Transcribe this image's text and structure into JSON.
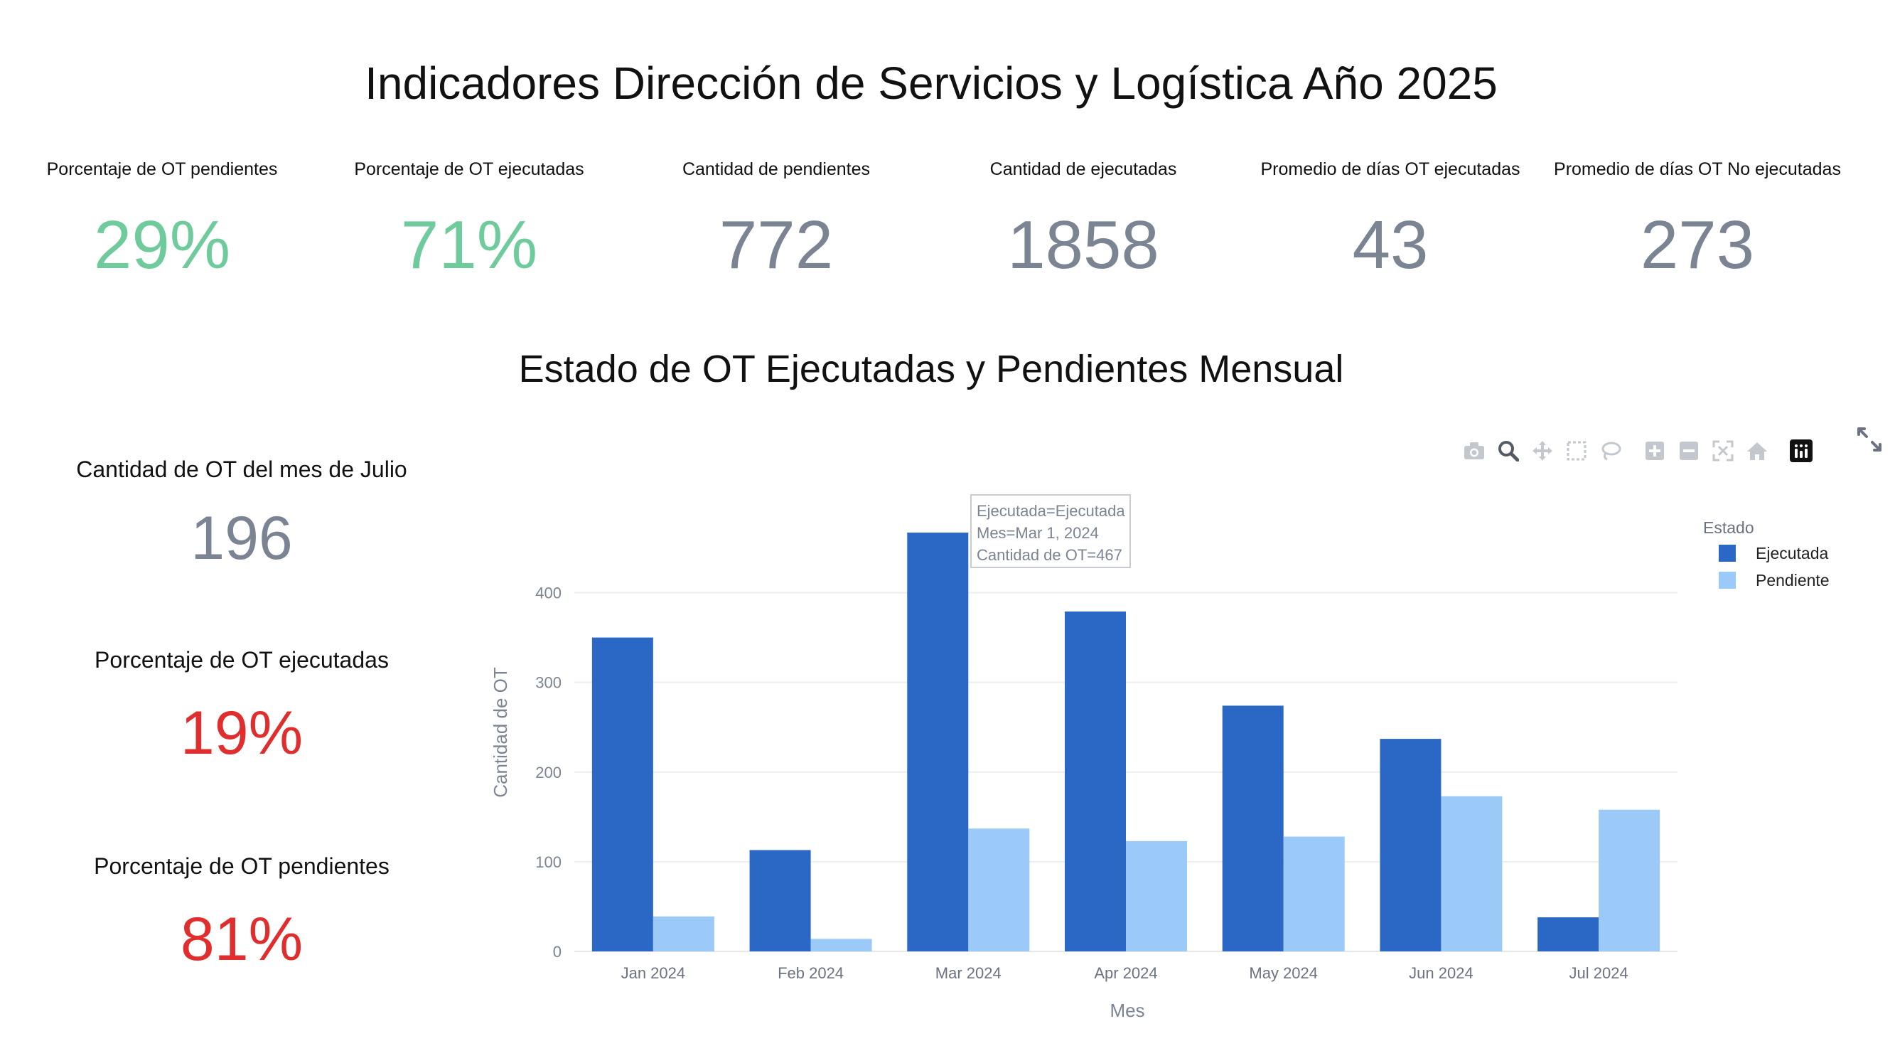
{
  "page": {
    "title": "Indicadores Dirección de Servicios y Logística Año 2025"
  },
  "kpis": [
    {
      "label": "Porcentaje de OT pendientes",
      "value": "29%"
    },
    {
      "label": "Porcentaje de OT ejecutadas",
      "value": "71%"
    },
    {
      "label": "Cantidad de pendientes",
      "value": "772"
    },
    {
      "label": "Cantidad de ejecutadas",
      "value": "1858"
    },
    {
      "label": "Promedio de días OT ejecutadas",
      "value": "43"
    },
    {
      "label": "Promedio de días OT No ejecutadas",
      "value": "273"
    }
  ],
  "colors": {
    "kpi_green": "#6fcb9b",
    "kpi_grey": "#7b8493",
    "kpi_red": "#e02e2e",
    "ejecutada": "#2b67c4",
    "pendiente": "#9bc9f8"
  },
  "side": {
    "month_label": "Cantidad de OT del mes de Julio",
    "month_value": "196",
    "exec_label": "Porcentaje de OT ejecutadas",
    "exec_value": "19%",
    "pend_label": "Porcentaje de OT pendientes",
    "pend_value": "81%"
  },
  "modebar": {
    "icons": [
      "camera-icon",
      "zoom-icon",
      "pan-icon",
      "box-select-icon",
      "lasso-icon",
      "zoom-in-icon",
      "zoom-out-icon",
      "autoscale-icon",
      "home-icon",
      "plotly-logo-icon"
    ],
    "expand_icon": "expand-icon"
  },
  "tooltip": {
    "line1": "Ejecutada=Ejecutada",
    "line2": "Mes=Mar 1, 2024",
    "line3": "Cantidad de OT=467"
  },
  "chart_data": {
    "type": "bar",
    "title": "Estado de OT Ejecutadas y Pendientes Mensual",
    "xlabel": "Mes",
    "ylabel": "Cantidad de OT",
    "categories": [
      "Jan 2024",
      "Feb 2024",
      "Mar 2024",
      "Apr 2024",
      "May 2024",
      "Jun 2024",
      "Jul 2024"
    ],
    "series": [
      {
        "name": "Ejecutada",
        "values": [
          350,
          113,
          467,
          379,
          274,
          237,
          38
        ]
      },
      {
        "name": "Pendiente",
        "values": [
          39,
          14,
          137,
          123,
          128,
          173,
          158
        ]
      }
    ],
    "ylim": [
      0,
      490
    ],
    "yticks": [
      0,
      100,
      200,
      300,
      400
    ],
    "legend_title": "Estado",
    "legend_position": "top-right",
    "grid": true
  }
}
